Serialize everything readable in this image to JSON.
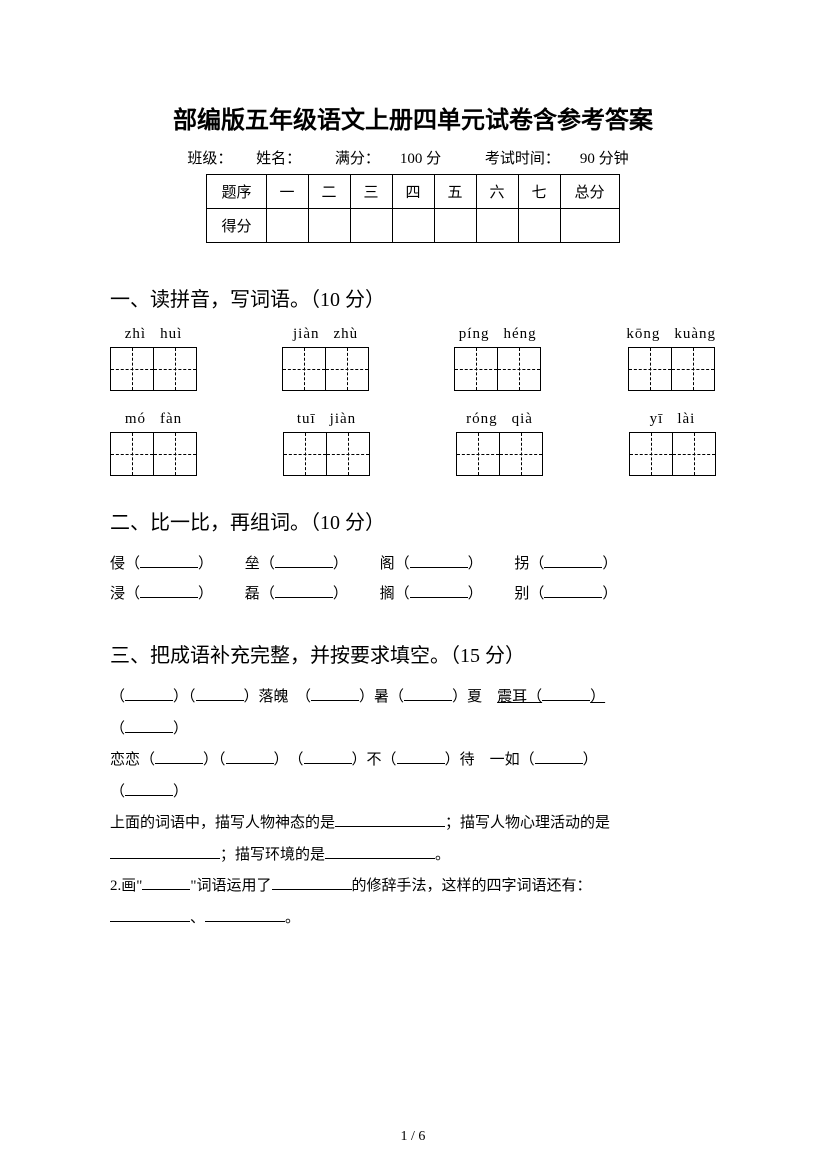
{
  "title": "部编版五年级语文上册四单元试卷含参考答案",
  "info": {
    "class_label": "班级：",
    "name_label": "姓名：",
    "full_label": "满分：",
    "full_value": "100 分",
    "time_label": "考试时间：",
    "time_value": "90 分钟"
  },
  "score_table": {
    "row1": [
      "题序",
      "一",
      "二",
      "三",
      "四",
      "五",
      "六",
      "七",
      "总分"
    ],
    "row2_label": "得分"
  },
  "sections": {
    "s1": {
      "heading": "一、读拼音，写词语。（10 分）",
      "row1": [
        {
          "p1": "zhì",
          "p2": "huì"
        },
        {
          "p1": "jiàn",
          "p2": "zhù"
        },
        {
          "p1": "píng",
          "p2": "héng"
        },
        {
          "p1": "kōng",
          "p2": "kuàng"
        }
      ],
      "row2": [
        {
          "p1": "mó",
          "p2": "fàn"
        },
        {
          "p1": "tuī",
          "p2": "jiàn"
        },
        {
          "p1": "róng",
          "p2": "qià"
        },
        {
          "p1": "yī",
          "p2": "lài"
        }
      ]
    },
    "s2": {
      "heading": "二、比一比，再组词。（10 分）",
      "pairs": [
        [
          "侵",
          "垒",
          "阁",
          "拐"
        ],
        [
          "浸",
          "磊",
          "搁",
          "别"
        ]
      ]
    },
    "s3": {
      "heading": "三、把成语补充完整，并按要求填空。（15 分）",
      "line1_parts": {
        "a": "（",
        "b": "）（",
        "c": "）落魄　（",
        "d": "）暑（",
        "e": "）夏　",
        "under": "震耳（",
        "f": "）"
      },
      "line2_open": "（",
      "line2_close": "）",
      "line3_parts": {
        "a": "恋恋（",
        "b": "）（",
        "c": "）　（",
        "d": "）不（",
        "e": "）待　一如（",
        "f": "）"
      },
      "line4_open": "（",
      "line4_close": "）",
      "desc1": "上面的词语中，描写人物神态的是",
      "desc1b": "；描写人物心理活动的是",
      "desc2a": "",
      "desc2b": "；描写环境的是",
      "desc2c": "。",
      "line_q2_a": "2.画\"",
      "line_q2_b": "\"词语运用了",
      "line_q2_c": "的修辞手法，这样的四字词语还有：",
      "line_q2_d": "、",
      "line_q2_e": "。"
    }
  },
  "page_num": "1 / 6",
  "colors": {
    "text": "#000000",
    "background": "#ffffff"
  }
}
